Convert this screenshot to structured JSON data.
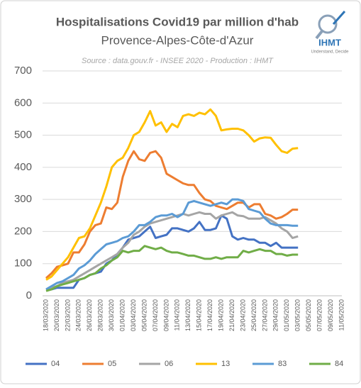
{
  "logo": {
    "name": "IHMT",
    "tagline": "Understand, Decide"
  },
  "chart_data": {
    "type": "line",
    "title": "Hospitalisations Covid19 par million d'hab",
    "subtitle": "Provence-Alpes-Côte-d'Azur",
    "source": "Source : data.gouv.fr - INSEE 2020 - Production : IHMT",
    "categories": [
      "18/03/2020",
      null,
      "20/03/2020",
      null,
      "22/03/2020",
      null,
      "24/03/2020",
      null,
      "26/03/2020",
      null,
      "28/03/2020",
      null,
      "30/03/2020",
      null,
      "01/04/2020",
      null,
      "03/04/2020",
      null,
      "05/04/2020",
      null,
      "07/04/2020",
      null,
      "09/04/2020",
      null,
      "11/04/2020",
      null,
      "13/04/2020",
      null,
      "15/04/2020",
      null,
      "17/04/2020",
      null,
      "19/04/2020",
      null,
      "21/04/2020",
      null,
      "23/04/2020",
      null,
      "25/04/2020",
      null,
      "27/04/2020",
      null,
      "29/04/2020",
      null,
      "01/05/2020",
      null,
      "03/05/2020",
      null,
      "05/05/2020",
      null,
      "07/05/2020",
      null,
      "09/05/2020",
      null,
      "11/05/2020"
    ],
    "series": [
      {
        "name": "04",
        "color": "#4472c4",
        "values": [
          20,
          20,
          25,
          25,
          25,
          25,
          50,
          55,
          65,
          70,
          75,
          100,
          110,
          130,
          150,
          175,
          180,
          185,
          200,
          215,
          180,
          185,
          190,
          210,
          210,
          205,
          200,
          210,
          230,
          205,
          205,
          210,
          250,
          240,
          185,
          175,
          180,
          175,
          175,
          165,
          165,
          155,
          165,
          150,
          150,
          150,
          150,
          null,
          null,
          null,
          null,
          null,
          null,
          null,
          null
        ]
      },
      {
        "name": "05",
        "color": "#ed7d31",
        "values": [
          55,
          70,
          90,
          95,
          100,
          135,
          135,
          160,
          200,
          220,
          225,
          275,
          270,
          290,
          370,
          420,
          450,
          425,
          420,
          445,
          450,
          430,
          380,
          370,
          360,
          350,
          345,
          345,
          320,
          300,
          295,
          280,
          275,
          270,
          280,
          290,
          290,
          275,
          285,
          285,
          255,
          250,
          240,
          245,
          255,
          268,
          268,
          null,
          null,
          null,
          null,
          null,
          null,
          null,
          null
        ]
      },
      {
        "name": "06",
        "color": "#a5a5a5",
        "values": [
          20,
          25,
          30,
          40,
          45,
          50,
          60,
          70,
          80,
          90,
          100,
          110,
          120,
          130,
          150,
          165,
          190,
          200,
          215,
          225,
          230,
          235,
          240,
          245,
          250,
          255,
          250,
          255,
          260,
          255,
          255,
          240,
          250,
          255,
          260,
          250,
          248,
          240,
          240,
          240,
          245,
          235,
          225,
          210,
          200,
          180,
          185,
          null,
          null,
          null,
          null,
          null,
          null,
          null,
          null
        ]
      },
      {
        "name": "13",
        "color": "#ffc000",
        "values": [
          50,
          60,
          80,
          100,
          120,
          150,
          180,
          185,
          210,
          250,
          290,
          340,
          400,
          420,
          430,
          460,
          500,
          510,
          540,
          575,
          530,
          540,
          510,
          535,
          525,
          560,
          565,
          560,
          570,
          565,
          580,
          560,
          515,
          518,
          520,
          520,
          515,
          500,
          480,
          490,
          493,
          492,
          470,
          450,
          445,
          458,
          460,
          null,
          null,
          null,
          null,
          null,
          null,
          null,
          null
        ]
      },
      {
        "name": "83",
        "color": "#5b9bd5",
        "values": [
          20,
          30,
          40,
          45,
          55,
          65,
          85,
          95,
          110,
          130,
          145,
          160,
          165,
          170,
          180,
          185,
          200,
          220,
          220,
          230,
          245,
          250,
          250,
          255,
          245,
          255,
          290,
          295,
          290,
          285,
          280,
          285,
          290,
          285,
          300,
          300,
          295,
          270,
          265,
          260,
          240,
          225,
          220,
          220,
          220,
          218,
          218,
          null,
          null,
          null,
          null,
          null,
          null,
          null,
          null
        ]
      },
      {
        "name": "84",
        "color": "#70ad47",
        "values": [
          15,
          20,
          30,
          35,
          40,
          45,
          50,
          55,
          65,
          70,
          85,
          95,
          110,
          120,
          140,
          135,
          140,
          140,
          155,
          150,
          145,
          150,
          140,
          135,
          135,
          130,
          125,
          125,
          120,
          115,
          115,
          120,
          115,
          120,
          120,
          120,
          140,
          135,
          140,
          145,
          140,
          140,
          130,
          130,
          125,
          128,
          128,
          null,
          null,
          null,
          null,
          null,
          null,
          null,
          null
        ]
      }
    ],
    "ylim": [
      0,
      700
    ],
    "yticks": [
      0,
      100,
      200,
      300,
      400,
      500,
      600,
      700
    ],
    "grid": true,
    "legend": "bottom"
  }
}
